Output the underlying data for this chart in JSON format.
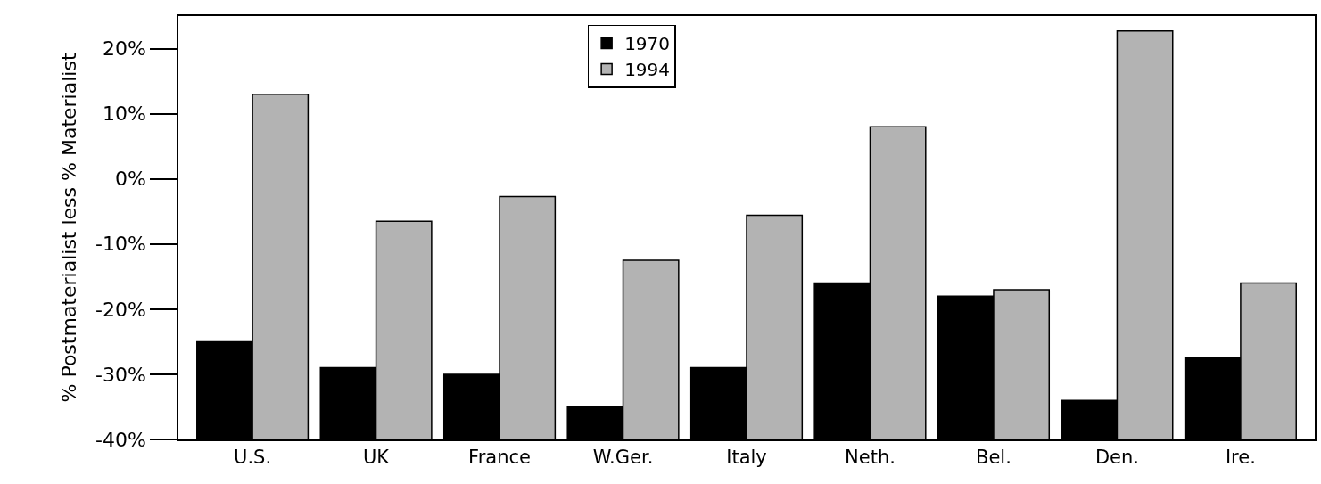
{
  "chart_data": {
    "type": "bar",
    "ylabel": "% Postmaterialist less % Materialist",
    "categories": [
      "U.S.",
      "UK",
      "France",
      "W.Ger.",
      "Italy",
      "Neth.",
      "Bel.",
      "Den.",
      "Ire."
    ],
    "series": [
      {
        "name": "1970",
        "color": "#000000",
        "base": [
          -40,
          -40,
          -40,
          -40,
          -40,
          -40,
          -40,
          -40,
          -40
        ],
        "values": [
          15,
          11,
          10,
          5,
          11,
          24,
          22,
          6,
          12.5
        ]
      },
      {
        "name": "1994",
        "color": "#b3b3b3",
        "base": [
          -40,
          -40,
          -40,
          -40,
          -40,
          -40,
          -40,
          -40,
          -40
        ],
        "values": [
          53,
          33.5,
          37.3,
          27.5,
          34.4,
          48,
          23,
          62.7,
          24
        ]
      }
    ],
    "ylim": [
      -40,
      25
    ],
    "yticks": [
      {
        "value": -40,
        "label": "-40%"
      },
      {
        "value": -30,
        "label": "-30%"
      },
      {
        "value": -20,
        "label": "-20%"
      },
      {
        "value": -10,
        "label": "-10%"
      },
      {
        "value": 0,
        "label": "0%"
      },
      {
        "value": 10,
        "label": "10%"
      },
      {
        "value": 20,
        "label": "20%"
      }
    ],
    "legend": "top"
  }
}
